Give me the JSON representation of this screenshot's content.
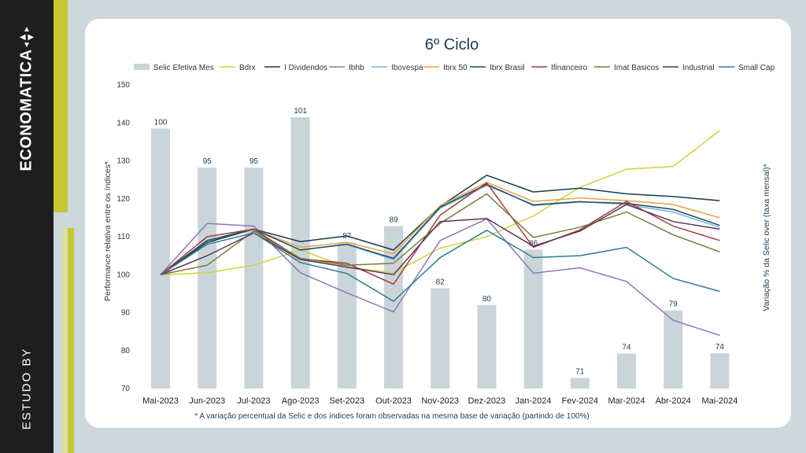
{
  "brand": {
    "name": "ECONOMATICA",
    "tagline": "ESTUDO BY"
  },
  "colors": {
    "bar": "#cad5d9",
    "accent": "#c9c72f",
    "sidebar": "#1e1e1e"
  },
  "chart_data": {
    "type": "bar+line",
    "title": "6º Ciclo",
    "ylabel": "Performance relativa entre os índices*",
    "ylabel_right": "Variação % da Selic over (taxa mensal)*",
    "note": "* A variação percentual da Selic e dos índices foram observadas na mesma base de variação (partindo de 100%)",
    "ylim": [
      70,
      150
    ],
    "yticks": [
      70,
      80,
      90,
      100,
      110,
      120,
      130,
      140,
      150
    ],
    "categories": [
      "Mai-2023",
      "Jun-2023",
      "Jul-2023",
      "Ago-2023",
      "Set-2023",
      "Out-2023",
      "Nov-2023",
      "Dez-2023",
      "Jan-2024",
      "Fev-2024",
      "Mar-2024",
      "Abr-2024",
      "Mai-2024"
    ],
    "bar_series": {
      "name": "Selic Efetiva Mes",
      "color": "#cad5d9",
      "values": [
        138.5,
        128.2,
        128.2,
        141.5,
        108.5,
        112.8,
        96.4,
        92.0,
        106.6,
        72.8,
        79.2,
        90.6,
        79.3
      ],
      "labels": [
        "100",
        "95",
        "95",
        "101",
        "87",
        "89",
        "82",
        "80",
        "86",
        "71",
        "74",
        "79",
        "74"
      ]
    },
    "series": [
      {
        "name": "Bdrx",
        "color": "#d6cf3e",
        "values": [
          100,
          100.5,
          102.5,
          106.5,
          102,
          100.5,
          107,
          110,
          115.5,
          123,
          127.8,
          128.5,
          138
        ]
      },
      {
        "name": "I Dividendos",
        "color": "#173a52",
        "values": [
          100,
          108.5,
          112,
          108.7,
          110.2,
          106.5,
          118,
          126.2,
          121.8,
          122.8,
          121.3,
          120.6,
          119.5
        ]
      },
      {
        "name": "Ibhb",
        "color": "#8f76b8",
        "values": [
          100,
          113.5,
          112.8,
          100.5,
          95.2,
          90.2,
          109,
          114.7,
          100.4,
          101.8,
          98.2,
          88,
          84
        ]
      },
      {
        "name": "Ibovespa",
        "color": "#6bb8d8",
        "values": [
          100,
          109,
          112,
          106.5,
          108,
          104,
          117.5,
          123.5,
          118.5,
          119.3,
          118.5,
          116.5,
          112.5
        ]
      },
      {
        "name": "Ibrx 50",
        "color": "#f0a040",
        "values": [
          100,
          109,
          112,
          107.2,
          108.5,
          105.5,
          118.2,
          124.3,
          119.3,
          120.2,
          119.5,
          118.5,
          115
        ]
      },
      {
        "name": "Ibrx Brasil",
        "color": "#1d4c6b",
        "values": [
          100,
          109,
          112,
          106.5,
          108,
          104.3,
          117.8,
          123.8,
          118.3,
          119.2,
          118.8,
          117.2,
          113
        ]
      },
      {
        "name": "Ifinanceiro",
        "color": "#a33a3a",
        "values": [
          100,
          110,
          112,
          104.2,
          103,
          97.5,
          115.7,
          124.2,
          107.2,
          111.8,
          119.3,
          112.8,
          109
        ]
      },
      {
        "name": "Imat Basicos",
        "color": "#7a7b3a",
        "values": [
          100,
          102.5,
          111.5,
          104.3,
          102.5,
          103,
          113.5,
          121.3,
          109.8,
          112.5,
          116.5,
          110.5,
          106
        ]
      },
      {
        "name": "Industrial",
        "color": "#5b3553",
        "values": [
          100,
          105,
          111,
          104,
          102,
          100,
          114,
          114.8,
          107.5,
          111.5,
          118.5,
          114,
          112
        ]
      },
      {
        "name": "Small Cap",
        "color": "#2e7c95",
        "values": [
          100,
          108,
          111,
          103.2,
          100.3,
          93,
          104.5,
          111.7,
          104.5,
          105,
          107.2,
          99,
          95.6
        ]
      }
    ]
  }
}
